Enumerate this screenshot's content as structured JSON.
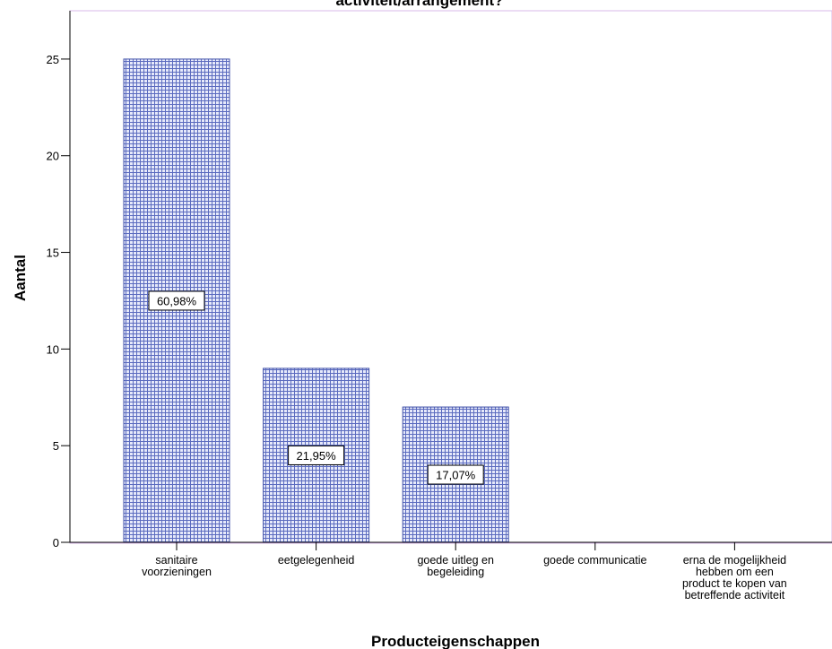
{
  "chart_data": {
    "type": "bar",
    "title": "activiteit/arrangement?",
    "xlabel": "Producteigenschappen",
    "ylabel": "Aantal",
    "categories": [
      [
        "sanitaire",
        "voorzieningen"
      ],
      [
        "eetgelegenheid"
      ],
      [
        "goede uitleg en",
        "begeleiding"
      ],
      [
        "goede communicatie"
      ],
      [
        "erna de mogelijkheid",
        "hebben om een",
        "product te kopen van",
        "betreffende activiteit"
      ]
    ],
    "values": [
      25,
      9,
      7,
      0,
      0
    ],
    "data_labels": [
      "60,98%",
      "21,95%",
      "17,07%",
      "",
      ""
    ],
    "ylim": [
      0,
      27.5
    ],
    "yticks": [
      0,
      5,
      10,
      15,
      20,
      25
    ],
    "grid": false,
    "colors": {
      "bar_fill": "#c9cfee",
      "bar_pattern": "#5b6bbf",
      "bar_edge": "#4050a8",
      "frame": "#d9b8e8"
    }
  }
}
